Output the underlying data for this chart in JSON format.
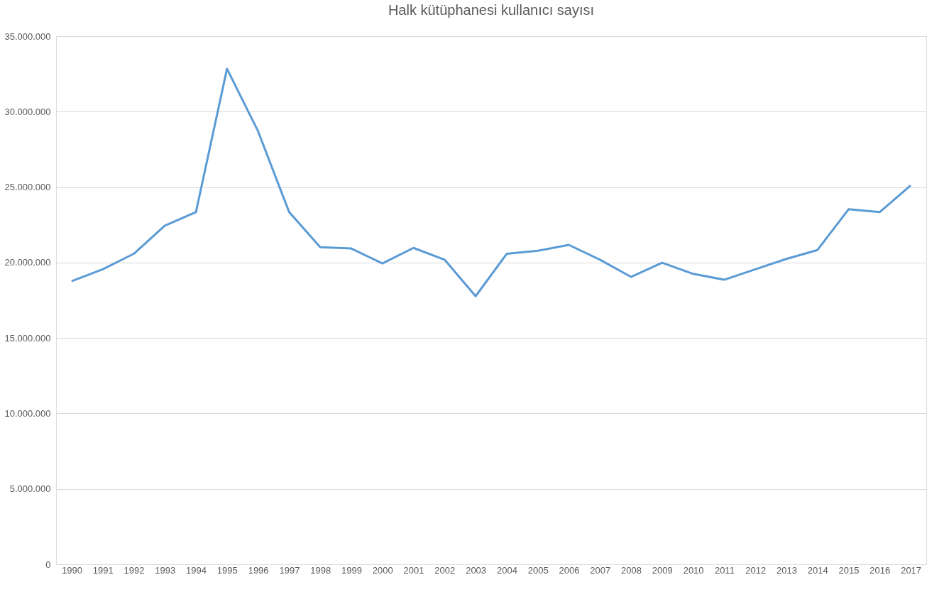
{
  "chart_data": {
    "type": "line",
    "title": "Halk kütüphanesi kullanıcı sayısı",
    "categories": [
      "1990",
      "1991",
      "1992",
      "1993",
      "1994",
      "1995",
      "1996",
      "1997",
      "1998",
      "1999",
      "2000",
      "2001",
      "2002",
      "2003",
      "2004",
      "2005",
      "2006",
      "2007",
      "2008",
      "2009",
      "2010",
      "2011",
      "2012",
      "2013",
      "2014",
      "2015",
      "2016",
      "2017"
    ],
    "series": [
      {
        "color": "#5b9bd5",
        "values": [
          18760000,
          19550000,
          20580000,
          22450000,
          23340000,
          32840000,
          28700000,
          23340000,
          21020000,
          20930000,
          19940000,
          20970000,
          20190000,
          17770000,
          20580000,
          20780000,
          21170000,
          20190000,
          19050000,
          19990000,
          19250000,
          18860000,
          19550000,
          20240000,
          20830000,
          23530000,
          23340000,
          25110000
        ]
      }
    ],
    "ylim": [
      0,
      35000000
    ],
    "yticks": [
      {
        "value": 0,
        "label": "0"
      },
      {
        "value": 5000000,
        "label": "5.000.000"
      },
      {
        "value": 10000000,
        "label": "10.000.000"
      },
      {
        "value": 15000000,
        "label": "15.000.000"
      },
      {
        "value": 20000000,
        "label": "20.000.000"
      },
      {
        "value": 25000000,
        "label": "25.000.000"
      },
      {
        "value": 30000000,
        "label": "30.000.000"
      },
      {
        "value": 35000000,
        "label": "35.000.000"
      }
    ],
    "grid": "y",
    "marker": "none",
    "line_style": "solid"
  }
}
